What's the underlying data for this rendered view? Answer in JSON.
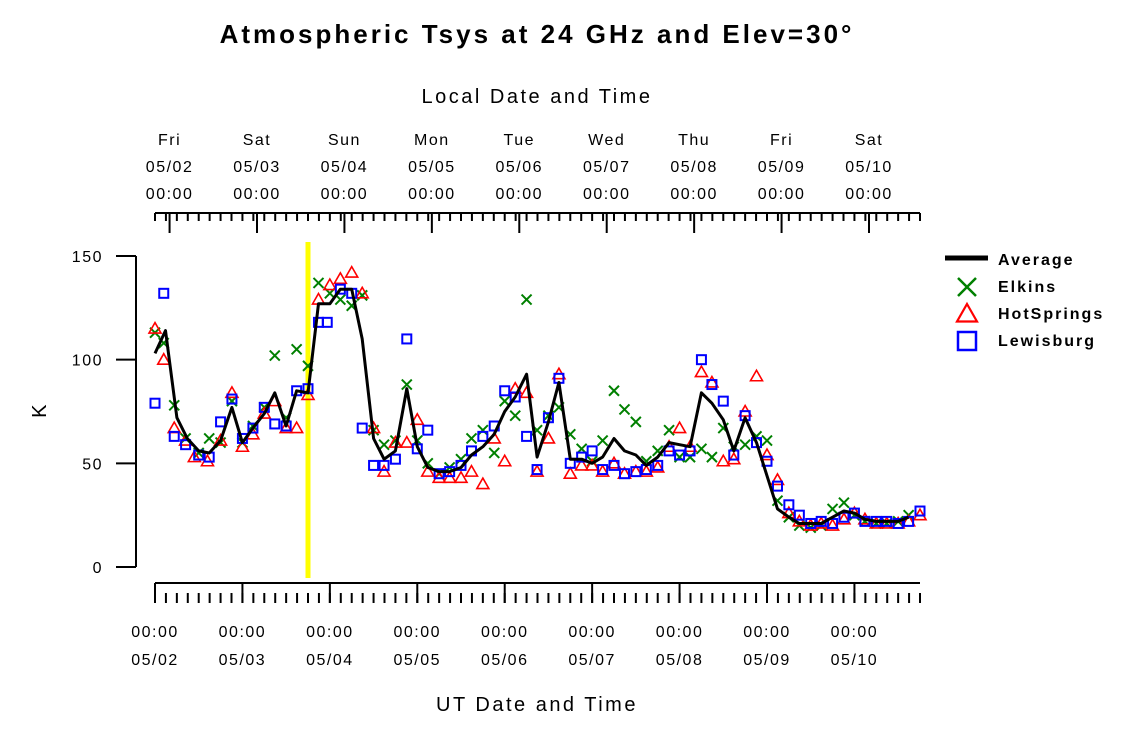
{
  "chart_data": {
    "type": "scatter",
    "title": "Atmospheric Tsys at 24 GHz and Elev=30°",
    "top_xlabel": "Local Date and Time",
    "xlabel": "UT Date and Time",
    "ylabel": "K",
    "ylim": [
      0,
      150
    ],
    "yticks": [
      0,
      50,
      100,
      150
    ],
    "xlim_ut_days": [
      0,
      8.75
    ],
    "top_ticks": [
      {
        "day": "Fri",
        "date": "05/02",
        "time": "00:00"
      },
      {
        "day": "Sat",
        "date": "05/03",
        "time": "00:00"
      },
      {
        "day": "Sun",
        "date": "05/04",
        "time": "00:00"
      },
      {
        "day": "Mon",
        "date": "05/05",
        "time": "00:00"
      },
      {
        "day": "Tue",
        "date": "05/06",
        "time": "00:00"
      },
      {
        "day": "Wed",
        "date": "05/07",
        "time": "00:00"
      },
      {
        "day": "Thu",
        "date": "05/08",
        "time": "00:00"
      },
      {
        "day": "Fri",
        "date": "05/09",
        "time": "00:00"
      },
      {
        "day": "Sat",
        "date": "05/10",
        "time": "00:00"
      }
    ],
    "bottom_ticks": [
      {
        "time": "00:00",
        "date": "05/02"
      },
      {
        "time": "00:00",
        "date": "05/03"
      },
      {
        "time": "00:00",
        "date": "05/04"
      },
      {
        "time": "00:00",
        "date": "05/05"
      },
      {
        "time": "00:00",
        "date": "05/06"
      },
      {
        "time": "00:00",
        "date": "05/07"
      },
      {
        "time": "00:00",
        "date": "05/08"
      },
      {
        "time": "00:00",
        "date": "05/09"
      },
      {
        "time": "00:00",
        "date": "05/10"
      }
    ],
    "highlight_x": 1.75,
    "highlight_color": "#ffff00",
    "legend": [
      "Average",
      "Elkins",
      "HotSprings",
      "Lewisburg"
    ],
    "legend_position": "right",
    "grid": false,
    "series": [
      {
        "name": "Average",
        "marker": "line",
        "color": "#000000",
        "points": [
          [
            0.0,
            103
          ],
          [
            0.12,
            114
          ],
          [
            0.25,
            72
          ],
          [
            0.37,
            62
          ],
          [
            0.5,
            56
          ],
          [
            0.62,
            55
          ],
          [
            0.75,
            61
          ],
          [
            0.88,
            77
          ],
          [
            1.0,
            60
          ],
          [
            1.12,
            67
          ],
          [
            1.25,
            74
          ],
          [
            1.37,
            84
          ],
          [
            1.5,
            68
          ],
          [
            1.62,
            85
          ],
          [
            1.75,
            84
          ],
          [
            1.87,
            127
          ],
          [
            2.0,
            127
          ],
          [
            2.12,
            134
          ],
          [
            2.25,
            134
          ],
          [
            2.37,
            110
          ],
          [
            2.5,
            62
          ],
          [
            2.62,
            52
          ],
          [
            2.75,
            56
          ],
          [
            2.88,
            86
          ],
          [
            3.0,
            58
          ],
          [
            3.12,
            48
          ],
          [
            3.25,
            46
          ],
          [
            3.37,
            46
          ],
          [
            3.5,
            48
          ],
          [
            3.62,
            54
          ],
          [
            3.75,
            58
          ],
          [
            3.88,
            64
          ],
          [
            4.0,
            75
          ],
          [
            4.12,
            82
          ],
          [
            4.25,
            93
          ],
          [
            4.37,
            53
          ],
          [
            4.5,
            70
          ],
          [
            4.62,
            89
          ],
          [
            4.75,
            52
          ],
          [
            4.88,
            52
          ],
          [
            5.0,
            50
          ],
          [
            5.12,
            53
          ],
          [
            5.25,
            62
          ],
          [
            5.37,
            56
          ],
          [
            5.5,
            54
          ],
          [
            5.62,
            49
          ],
          [
            5.75,
            53
          ],
          [
            5.88,
            60
          ],
          [
            6.0,
            59
          ],
          [
            6.12,
            58
          ],
          [
            6.25,
            84
          ],
          [
            6.37,
            79
          ],
          [
            6.5,
            71
          ],
          [
            6.62,
            56
          ],
          [
            6.75,
            72
          ],
          [
            6.88,
            60
          ],
          [
            7.0,
            44
          ],
          [
            7.12,
            28
          ],
          [
            7.25,
            24
          ],
          [
            7.37,
            21
          ],
          [
            7.5,
            21
          ],
          [
            7.62,
            21
          ],
          [
            7.75,
            24
          ],
          [
            7.88,
            27
          ],
          [
            8.0,
            26
          ],
          [
            8.12,
            23
          ],
          [
            8.25,
            22
          ],
          [
            8.37,
            22
          ],
          [
            8.5,
            22
          ],
          [
            8.62,
            24
          ]
        ]
      },
      {
        "name": "Elkins",
        "marker": "x",
        "color": "#008000",
        "points": [
          [
            0.0,
            113
          ],
          [
            0.1,
            108
          ],
          [
            0.22,
            78
          ],
          [
            0.35,
            62
          ],
          [
            0.5,
            55
          ],
          [
            0.62,
            62
          ],
          [
            0.75,
            60
          ],
          [
            0.88,
            80
          ],
          [
            1.0,
            60
          ],
          [
            1.12,
            68
          ],
          [
            1.25,
            77
          ],
          [
            1.37,
            102
          ],
          [
            1.5,
            72
          ],
          [
            1.62,
            105
          ],
          [
            1.75,
            97
          ],
          [
            1.87,
            137
          ],
          [
            2.0,
            132
          ],
          [
            2.12,
            129
          ],
          [
            2.25,
            126
          ],
          [
            2.37,
            131
          ],
          [
            2.5,
            66
          ],
          [
            2.62,
            59
          ],
          [
            2.75,
            61
          ],
          [
            2.88,
            88
          ],
          [
            3.0,
            61
          ],
          [
            3.12,
            50
          ],
          [
            3.25,
            45
          ],
          [
            3.37,
            48
          ],
          [
            3.5,
            52
          ],
          [
            3.62,
            62
          ],
          [
            3.75,
            66
          ],
          [
            3.88,
            55
          ],
          [
            4.0,
            80
          ],
          [
            4.12,
            73
          ],
          [
            4.25,
            129
          ],
          [
            4.37,
            66
          ],
          [
            4.5,
            73
          ],
          [
            4.62,
            77
          ],
          [
            4.75,
            64
          ],
          [
            4.88,
            57
          ],
          [
            5.0,
            51
          ],
          [
            5.12,
            61
          ],
          [
            5.25,
            85
          ],
          [
            5.37,
            76
          ],
          [
            5.5,
            70
          ],
          [
            5.62,
            51
          ],
          [
            5.75,
            56
          ],
          [
            5.88,
            66
          ],
          [
            6.0,
            53
          ],
          [
            6.12,
            53
          ],
          [
            6.25,
            57
          ],
          [
            6.37,
            53
          ],
          [
            6.5,
            67
          ],
          [
            6.62,
            58
          ],
          [
            6.75,
            59
          ],
          [
            6.88,
            63
          ],
          [
            7.0,
            61
          ],
          [
            7.12,
            32
          ],
          [
            7.25,
            24
          ],
          [
            7.37,
            20
          ],
          [
            7.5,
            19
          ],
          [
            7.62,
            20
          ],
          [
            7.75,
            28
          ],
          [
            7.88,
            31
          ],
          [
            8.0,
            25
          ],
          [
            8.12,
            22
          ],
          [
            8.25,
            21
          ],
          [
            8.37,
            21
          ],
          [
            8.5,
            22
          ],
          [
            8.62,
            25
          ]
        ]
      },
      {
        "name": "HotSprings",
        "marker": "triangle",
        "color": "#ff0000",
        "points": [
          [
            0.0,
            115
          ],
          [
            0.1,
            100
          ],
          [
            0.22,
            67
          ],
          [
            0.35,
            61
          ],
          [
            0.45,
            53
          ],
          [
            0.6,
            51
          ],
          [
            0.75,
            61
          ],
          [
            0.88,
            84
          ],
          [
            1.0,
            58
          ],
          [
            1.12,
            64
          ],
          [
            1.25,
            74
          ],
          [
            1.37,
            80
          ],
          [
            1.5,
            67
          ],
          [
            1.62,
            67
          ],
          [
            1.75,
            83
          ],
          [
            1.87,
            129
          ],
          [
            2.0,
            136
          ],
          [
            2.12,
            139
          ],
          [
            2.25,
            142
          ],
          [
            2.37,
            132
          ],
          [
            2.5,
            67
          ],
          [
            2.62,
            46
          ],
          [
            2.75,
            60
          ],
          [
            2.88,
            60
          ],
          [
            3.0,
            71
          ],
          [
            3.12,
            46
          ],
          [
            3.25,
            43
          ],
          [
            3.37,
            43
          ],
          [
            3.5,
            43
          ],
          [
            3.62,
            46
          ],
          [
            3.75,
            40
          ],
          [
            3.88,
            62
          ],
          [
            4.0,
            51
          ],
          [
            4.12,
            86
          ],
          [
            4.25,
            84
          ],
          [
            4.37,
            46
          ],
          [
            4.5,
            62
          ],
          [
            4.62,
            93
          ],
          [
            4.75,
            45
          ],
          [
            4.88,
            49
          ],
          [
            5.0,
            49
          ],
          [
            5.12,
            46
          ],
          [
            5.25,
            50
          ],
          [
            5.37,
            45
          ],
          [
            5.5,
            46
          ],
          [
            5.62,
            46
          ],
          [
            5.75,
            48
          ],
          [
            5.88,
            58
          ],
          [
            6.0,
            67
          ],
          [
            6.12,
            58
          ],
          [
            6.25,
            94
          ],
          [
            6.37,
            89
          ],
          [
            6.5,
            51
          ],
          [
            6.62,
            52
          ],
          [
            6.75,
            75
          ],
          [
            6.88,
            92
          ],
          [
            7.0,
            54
          ],
          [
            7.12,
            42
          ],
          [
            7.25,
            26
          ],
          [
            7.37,
            22
          ],
          [
            7.5,
            20
          ],
          [
            7.62,
            21
          ],
          [
            7.75,
            20
          ],
          [
            7.88,
            23
          ],
          [
            8.0,
            26
          ],
          [
            8.12,
            23
          ],
          [
            8.25,
            21
          ],
          [
            8.37,
            21
          ],
          [
            8.5,
            21
          ],
          [
            8.62,
            22
          ],
          [
            8.75,
            25
          ]
        ]
      },
      {
        "name": "Lewisburg",
        "marker": "square",
        "color": "#0000ff",
        "points": [
          [
            0.0,
            79
          ],
          [
            0.1,
            132
          ],
          [
            0.22,
            63
          ],
          [
            0.35,
            59
          ],
          [
            0.5,
            54
          ],
          [
            0.62,
            53
          ],
          [
            0.75,
            70
          ],
          [
            0.88,
            81
          ],
          [
            1.0,
            62
          ],
          [
            1.12,
            67
          ],
          [
            1.25,
            77
          ],
          [
            1.37,
            69
          ],
          [
            1.5,
            68
          ],
          [
            1.62,
            85
          ],
          [
            1.75,
            86
          ],
          [
            1.87,
            118
          ],
          [
            1.97,
            118
          ],
          [
            2.12,
            134
          ],
          [
            2.25,
            132
          ],
          [
            2.37,
            67
          ],
          [
            2.5,
            49
          ],
          [
            2.62,
            49
          ],
          [
            2.75,
            52
          ],
          [
            2.88,
            110
          ],
          [
            3.0,
            57
          ],
          [
            3.12,
            66
          ],
          [
            3.25,
            45
          ],
          [
            3.37,
            46
          ],
          [
            3.5,
            49
          ],
          [
            3.62,
            56
          ],
          [
            3.75,
            63
          ],
          [
            3.88,
            68
          ],
          [
            4.0,
            85
          ],
          [
            4.12,
            82
          ],
          [
            4.25,
            63
          ],
          [
            4.37,
            47
          ],
          [
            4.5,
            72
          ],
          [
            4.62,
            91
          ],
          [
            4.75,
            50
          ],
          [
            4.88,
            53
          ],
          [
            5.0,
            56
          ],
          [
            5.12,
            47
          ],
          [
            5.25,
            49
          ],
          [
            5.37,
            45
          ],
          [
            5.5,
            46
          ],
          [
            5.62,
            47
          ],
          [
            5.75,
            49
          ],
          [
            5.88,
            56
          ],
          [
            6.0,
            54
          ],
          [
            6.12,
            56
          ],
          [
            6.25,
            100
          ],
          [
            6.37,
            88
          ],
          [
            6.5,
            80
          ],
          [
            6.62,
            54
          ],
          [
            6.75,
            73
          ],
          [
            6.88,
            60
          ],
          [
            7.0,
            51
          ],
          [
            7.12,
            39
          ],
          [
            7.25,
            30
          ],
          [
            7.37,
            25
          ],
          [
            7.5,
            21
          ],
          [
            7.62,
            22
          ],
          [
            7.75,
            21
          ],
          [
            7.88,
            24
          ],
          [
            8.0,
            26
          ],
          [
            8.12,
            22
          ],
          [
            8.25,
            22
          ],
          [
            8.37,
            22
          ],
          [
            8.5,
            21
          ],
          [
            8.62,
            22
          ],
          [
            8.75,
            27
          ]
        ]
      }
    ]
  }
}
